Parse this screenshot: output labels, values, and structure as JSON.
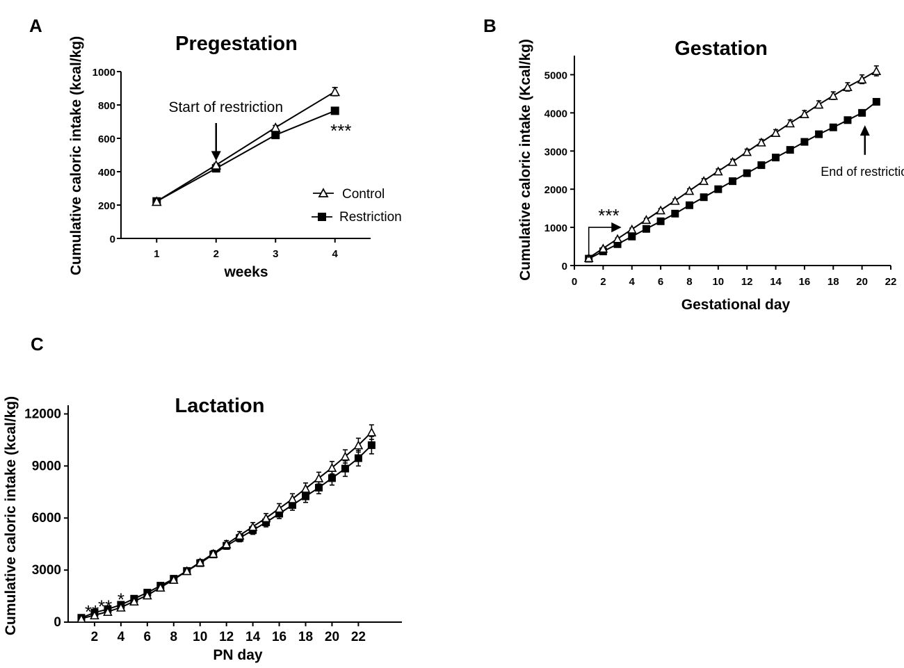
{
  "chart_data": [
    {
      "panel": "A",
      "type": "line",
      "title": "Pregestation",
      "xlabel": "weeks",
      "ylabel": "Cumulative caloric intake (kcal/kg)",
      "xlim": [
        0.4,
        4.6
      ],
      "ylim": [
        0,
        1000
      ],
      "xticks": [
        1,
        2,
        3,
        4
      ],
      "yticks": [
        0,
        200,
        400,
        600,
        800,
        1000
      ],
      "grid": false,
      "legend_position": "bottom-right",
      "series": [
        {
          "name": "Control",
          "marker": "open-triangle",
          "x": [
            1,
            2,
            3,
            4
          ],
          "values": [
            222,
            440,
            665,
            880
          ],
          "error": [
            8,
            10,
            12,
            25
          ]
        },
        {
          "name": "Restriction",
          "marker": "filled-square",
          "x": [
            1,
            2,
            3,
            4
          ],
          "values": [
            222,
            420,
            620,
            765
          ],
          "error": [
            6,
            8,
            10,
            10
          ]
        }
      ],
      "annotations": [
        {
          "text": "Start of restriction",
          "type": "arrow-down",
          "x": 2,
          "y": 600,
          "y_end": 490
        },
        {
          "text": "***",
          "type": "text",
          "x": 4.1,
          "y": 650
        }
      ]
    },
    {
      "panel": "B",
      "type": "line",
      "title": "Gestation",
      "xlabel": "Gestational day",
      "ylabel": "Cumulative caloric intake (Kcal/kg)",
      "xlim": [
        0,
        22
      ],
      "ylim": [
        0,
        5500
      ],
      "xticks": [
        0,
        2,
        4,
        6,
        8,
        10,
        12,
        14,
        16,
        18,
        20,
        22
      ],
      "yticks": [
        0,
        1000,
        2000,
        3000,
        4000,
        5000
      ],
      "grid": false,
      "series": [
        {
          "name": "Control",
          "marker": "open-triangle",
          "x": [
            1,
            2,
            3,
            4,
            5,
            6,
            7,
            8,
            9,
            10,
            11,
            12,
            13,
            14,
            15,
            16,
            17,
            18,
            19,
            20,
            21
          ],
          "values": [
            200,
            450,
            700,
            950,
            1200,
            1450,
            1700,
            1960,
            2220,
            2470,
            2720,
            2980,
            3230,
            3480,
            3730,
            3970,
            4220,
            4450,
            4680,
            4880,
            5100
          ],
          "error": [
            15,
            20,
            25,
            30,
            35,
            40,
            45,
            50,
            55,
            60,
            65,
            70,
            75,
            80,
            85,
            90,
            95,
            100,
            110,
            115,
            130
          ]
        },
        {
          "name": "Restriction",
          "marker": "filled-square",
          "x": [
            1,
            2,
            3,
            4,
            5,
            6,
            7,
            8,
            9,
            10,
            11,
            12,
            13,
            14,
            15,
            16,
            17,
            18,
            19,
            20,
            21
          ],
          "values": [
            180,
            370,
            560,
            760,
            960,
            1160,
            1360,
            1580,
            1790,
            2000,
            2210,
            2420,
            2630,
            2830,
            3030,
            3240,
            3440,
            3620,
            3810,
            4000,
            4290
          ],
          "error": [
            10,
            12,
            15,
            18,
            20,
            22,
            25,
            28,
            30,
            32,
            35,
            38,
            40,
            42,
            45,
            48,
            50,
            52,
            55,
            58,
            60
          ]
        }
      ],
      "annotations": [
        {
          "text": "***",
          "type": "bracket-arrow",
          "x_start": 1,
          "x_end": 3.2,
          "y_bottom": 200,
          "y_top": 1000
        },
        {
          "text": "End of restriction",
          "type": "arrow-up",
          "x": 20.2,
          "y_start": 2900,
          "y_end": 3550
        }
      ]
    },
    {
      "panel": "C",
      "type": "line",
      "title": "Lactation",
      "xlabel": "PN day",
      "ylabel": "Cumulative caloric intake (kcal/kg)",
      "xlim": [
        0,
        25.3
      ],
      "ylim": [
        0,
        12500
      ],
      "xticks": [
        2,
        4,
        6,
        8,
        10,
        12,
        14,
        16,
        18,
        20,
        22
      ],
      "yticks": [
        0,
        3000,
        6000,
        9000,
        12000
      ],
      "grid": false,
      "series": [
        {
          "name": "Control",
          "marker": "open-triangle",
          "x": [
            1,
            2,
            3,
            4,
            5,
            6,
            7,
            8,
            9,
            10,
            11,
            12,
            13,
            14,
            15,
            16,
            17,
            18,
            19,
            20,
            21,
            22,
            23
          ],
          "values": [
            200,
            400,
            600,
            850,
            1200,
            1550,
            2000,
            2450,
            2950,
            3450,
            3950,
            4500,
            5000,
            5500,
            6000,
            6550,
            7100,
            7700,
            8300,
            8900,
            9550,
            10200,
            10950
          ],
          "error": [
            30,
            40,
            50,
            60,
            70,
            90,
            100,
            120,
            140,
            160,
            180,
            200,
            220,
            240,
            260,
            280,
            300,
            320,
            340,
            360,
            380,
            400,
            420
          ]
        },
        {
          "name": "Restriction",
          "marker": "filled-square",
          "x": [
            1,
            2,
            3,
            4,
            5,
            6,
            7,
            8,
            9,
            10,
            11,
            12,
            13,
            14,
            15,
            16,
            17,
            18,
            19,
            20,
            21,
            22,
            23
          ],
          "values": [
            250,
            550,
            750,
            1000,
            1350,
            1700,
            2100,
            2500,
            2950,
            3400,
            3900,
            4400,
            4850,
            5300,
            5750,
            6250,
            6750,
            7250,
            7750,
            8300,
            8850,
            9450,
            10200
          ],
          "error": [
            30,
            40,
            50,
            60,
            70,
            90,
            100,
            120,
            140,
            160,
            180,
            200,
            220,
            240,
            260,
            280,
            300,
            350,
            350,
            400,
            450,
            450,
            500
          ]
        }
      ],
      "annotations": [
        {
          "text": "**",
          "type": "text",
          "x": 1.8,
          "y": 650
        },
        {
          "text": "**",
          "type": "text",
          "x": 2.8,
          "y": 950
        },
        {
          "text": "*",
          "type": "text",
          "x": 4.0,
          "y": 1350
        }
      ]
    }
  ]
}
